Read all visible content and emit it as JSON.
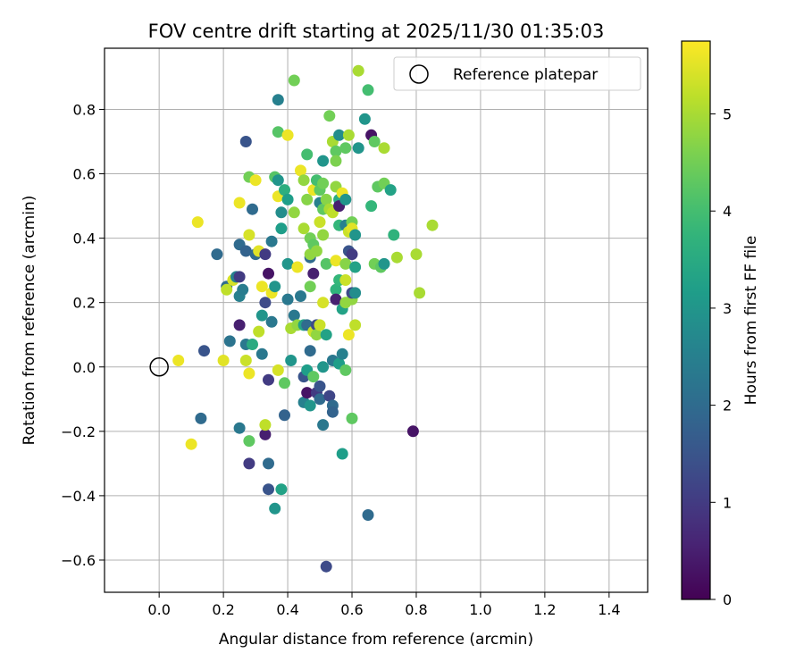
{
  "chart_data": {
    "type": "scatter",
    "title": "FOV centre drift starting at 2025/11/30 01:35:03",
    "xlabel": "Angular distance from reference (arcmin)",
    "ylabel": "Rotation from reference (arcmin)",
    "xlim": [
      -0.17,
      1.52
    ],
    "ylim": [
      -0.7,
      0.99
    ],
    "xticks": [
      0.0,
      0.2,
      0.4,
      0.6,
      0.8,
      1.0,
      1.2,
      1.4
    ],
    "xtick_labels": [
      "0.0",
      "0.2",
      "0.4",
      "0.6",
      "0.8",
      "1.0",
      "1.2",
      "1.4"
    ],
    "yticks": [
      -0.6,
      -0.4,
      -0.2,
      0.0,
      0.2,
      0.4,
      0.6,
      0.8
    ],
    "ytick_labels": [
      "−0.6",
      "−0.4",
      "−0.2",
      "0.0",
      "0.2",
      "0.4",
      "0.6",
      "0.8"
    ],
    "grid": true,
    "legend": {
      "position": "top-right",
      "label": "Reference platepar"
    },
    "reference_point": {
      "x": 0.0,
      "y": 0.0
    },
    "colorbar": {
      "label": "Hours from first FF file",
      "min": 0,
      "max": 5.75,
      "ticks": [
        0,
        1,
        2,
        3,
        4,
        5
      ],
      "tick_labels": [
        "0",
        "1",
        "2",
        "3",
        "4",
        "5"
      ],
      "colormap": "viridis"
    },
    "points": [
      [
        0.06,
        0.02,
        5.6
      ],
      [
        0.1,
        -0.24,
        5.6
      ],
      [
        0.12,
        0.45,
        5.6
      ],
      [
        0.14,
        0.05,
        1.5
      ],
      [
        0.13,
        -0.16,
        2.0
      ],
      [
        0.18,
        0.35,
        2.0
      ],
      [
        0.2,
        0.02,
        5.5
      ],
      [
        0.21,
        0.25,
        2.0
      ],
      [
        0.21,
        0.24,
        5.2
      ],
      [
        0.22,
        0.08,
        2.2
      ],
      [
        0.23,
        0.27,
        5.4
      ],
      [
        0.24,
        0.28,
        2.5
      ],
      [
        0.25,
        0.13,
        0.5
      ],
      [
        0.25,
        0.22,
        2.5
      ],
      [
        0.25,
        0.38,
        2.0
      ],
      [
        0.25,
        -0.19,
        2.3
      ],
      [
        0.25,
        0.51,
        5.6
      ],
      [
        0.25,
        0.28,
        1.0
      ],
      [
        0.26,
        0.24,
        2.4
      ],
      [
        0.27,
        0.02,
        5.3
      ],
      [
        0.27,
        0.07,
        2.3
      ],
      [
        0.27,
        0.7,
        1.5
      ],
      [
        0.27,
        0.36,
        1.8
      ],
      [
        0.28,
        -0.23,
        4.3
      ],
      [
        0.28,
        -0.3,
        1.0
      ],
      [
        0.28,
        0.59,
        4.5
      ],
      [
        0.28,
        0.41,
        5.4
      ],
      [
        0.28,
        -0.02,
        5.6
      ],
      [
        0.29,
        0.07,
        3.5
      ],
      [
        0.29,
        0.49,
        2.0
      ],
      [
        0.3,
        0.35,
        2.0
      ],
      [
        0.3,
        0.58,
        5.6
      ],
      [
        0.31,
        0.36,
        5.5
      ],
      [
        0.31,
        0.11,
        5.2
      ],
      [
        0.32,
        0.25,
        5.6
      ],
      [
        0.32,
        0.16,
        3.0
      ],
      [
        0.32,
        0.04,
        2.3
      ],
      [
        0.33,
        0.35,
        1.0
      ],
      [
        0.33,
        0.2,
        1.3
      ],
      [
        0.33,
        -0.21,
        0.5
      ],
      [
        0.33,
        -0.18,
        5.2
      ],
      [
        0.34,
        0.29,
        0.3
      ],
      [
        0.34,
        -0.04,
        1.0
      ],
      [
        0.34,
        -0.38,
        1.5
      ],
      [
        0.34,
        -0.3,
        2.0
      ],
      [
        0.35,
        0.23,
        5.6
      ],
      [
        0.35,
        0.14,
        2.3
      ],
      [
        0.35,
        0.39,
        2.3
      ],
      [
        0.36,
        0.59,
        4.2
      ],
      [
        0.36,
        0.25,
        3.0
      ],
      [
        0.36,
        -0.44,
        3.0
      ],
      [
        0.37,
        0.83,
        2.5
      ],
      [
        0.37,
        0.58,
        3.0
      ],
      [
        0.37,
        0.73,
        4.2
      ],
      [
        0.37,
        0.53,
        5.6
      ],
      [
        0.37,
        -0.01,
        5.4
      ],
      [
        0.38,
        0.43,
        3.2
      ],
      [
        0.38,
        0.48,
        2.8
      ],
      [
        0.38,
        -0.38,
        3.3
      ],
      [
        0.39,
        -0.15,
        1.8
      ],
      [
        0.39,
        0.55,
        3.6
      ],
      [
        0.39,
        -0.05,
        4.3
      ],
      [
        0.4,
        0.21,
        2.3
      ],
      [
        0.4,
        0.32,
        3.0
      ],
      [
        0.4,
        0.72,
        5.6
      ],
      [
        0.4,
        0.52,
        3.2
      ],
      [
        0.41,
        0.02,
        3.0
      ],
      [
        0.41,
        0.12,
        5.0
      ],
      [
        0.42,
        0.16,
        2.3
      ],
      [
        0.42,
        0.48,
        4.8
      ],
      [
        0.42,
        0.89,
        4.5
      ],
      [
        0.43,
        0.13,
        4.8
      ],
      [
        0.43,
        0.31,
        5.6
      ],
      [
        0.44,
        0.22,
        2.3
      ],
      [
        0.44,
        0.61,
        5.6
      ],
      [
        0.45,
        0.13,
        3.3
      ],
      [
        0.45,
        0.43,
        5.0
      ],
      [
        0.45,
        0.58,
        4.8
      ],
      [
        0.45,
        -0.11,
        2.5
      ],
      [
        0.45,
        -0.03,
        1.5
      ],
      [
        0.46,
        0.13,
        2.0
      ],
      [
        0.46,
        0.66,
        4.0
      ],
      [
        0.46,
        0.52,
        4.7
      ],
      [
        0.46,
        -0.08,
        0.3
      ],
      [
        0.46,
        -0.01,
        3.2
      ],
      [
        0.47,
        0.4,
        4.5
      ],
      [
        0.47,
        -0.12,
        3.0
      ],
      [
        0.47,
        0.34,
        2.0
      ],
      [
        0.47,
        0.35,
        4.8
      ],
      [
        0.47,
        0.05,
        2.0
      ],
      [
        0.47,
        0.25,
        4.5
      ],
      [
        0.48,
        0.29,
        0.5
      ],
      [
        0.48,
        0.38,
        4.3
      ],
      [
        0.48,
        -0.03,
        4.3
      ],
      [
        0.48,
        0.55,
        5.6
      ],
      [
        0.48,
        0.11,
        5.3
      ],
      [
        0.49,
        0.13,
        1.3
      ],
      [
        0.49,
        0.1,
        4.8
      ],
      [
        0.49,
        0.58,
        4.0
      ],
      [
        0.49,
        -0.08,
        1.0
      ],
      [
        0.49,
        0.36,
        4.8
      ],
      [
        0.5,
        -0.1,
        2.0
      ],
      [
        0.5,
        0.45,
        5.3
      ],
      [
        0.5,
        0.55,
        4.3
      ],
      [
        0.5,
        -0.06,
        1.5
      ],
      [
        0.5,
        0.13,
        5.3
      ],
      [
        0.5,
        0.51,
        2.5
      ],
      [
        0.51,
        0.64,
        3.0
      ],
      [
        0.51,
        0.57,
        4.5
      ],
      [
        0.51,
        0.2,
        5.4
      ],
      [
        0.51,
        0.0,
        3.0
      ],
      [
        0.51,
        0.41,
        4.8
      ],
      [
        0.51,
        0.49,
        4.3
      ],
      [
        0.51,
        -0.18,
        2.3
      ],
      [
        0.52,
        0.32,
        4.2
      ],
      [
        0.52,
        0.52,
        4.7
      ],
      [
        0.52,
        -0.62,
        1.3
      ],
      [
        0.52,
        0.1,
        3.3
      ],
      [
        0.53,
        -0.09,
        1.2
      ],
      [
        0.53,
        0.78,
        4.5
      ],
      [
        0.53,
        0.49,
        5.0
      ],
      [
        0.54,
        0.7,
        5.0
      ],
      [
        0.54,
        -0.12,
        2.0
      ],
      [
        0.54,
        0.48,
        5.2
      ],
      [
        0.54,
        -0.14,
        1.8
      ],
      [
        0.54,
        0.02,
        2.3
      ],
      [
        0.55,
        0.56,
        4.8
      ],
      [
        0.55,
        0.33,
        5.6
      ],
      [
        0.55,
        0.67,
        4.3
      ],
      [
        0.55,
        0.24,
        3.7
      ],
      [
        0.55,
        0.21,
        0.5
      ],
      [
        0.55,
        0.64,
        4.6
      ],
      [
        0.56,
        0.52,
        3.5
      ],
      [
        0.56,
        0.72,
        2.8
      ],
      [
        0.56,
        0.44,
        3.8
      ],
      [
        0.56,
        0.5,
        0.5
      ],
      [
        0.56,
        0.27,
        3.8
      ],
      [
        0.56,
        0.01,
        3.2
      ],
      [
        0.57,
        -0.27,
        3.2
      ],
      [
        0.57,
        0.04,
        2.5
      ],
      [
        0.57,
        0.18,
        3.3
      ],
      [
        0.57,
        0.54,
        5.6
      ],
      [
        0.58,
        0.52,
        3.0
      ],
      [
        0.58,
        0.44,
        2.5
      ],
      [
        0.58,
        0.68,
        4.3
      ],
      [
        0.58,
        0.32,
        4.7
      ],
      [
        0.58,
        0.27,
        5.3
      ],
      [
        0.58,
        0.2,
        4.8
      ],
      [
        0.58,
        -0.01,
        4.3
      ],
      [
        0.59,
        0.42,
        5.3
      ],
      [
        0.59,
        0.72,
        5.0
      ],
      [
        0.59,
        0.36,
        1.5
      ],
      [
        0.59,
        0.1,
        5.6
      ],
      [
        0.6,
        0.35,
        1.0
      ],
      [
        0.6,
        0.21,
        4.8
      ],
      [
        0.6,
        0.23,
        1.3
      ],
      [
        0.6,
        0.45,
        4.5
      ],
      [
        0.6,
        0.43,
        5.5
      ],
      [
        0.6,
        -0.16,
        4.3
      ],
      [
        0.61,
        0.41,
        3.0
      ],
      [
        0.61,
        0.13,
        5.2
      ],
      [
        0.61,
        0.31,
        3.3
      ],
      [
        0.61,
        0.23,
        2.8
      ],
      [
        0.62,
        0.68,
        3.0
      ],
      [
        0.62,
        0.92,
        5.0
      ],
      [
        0.64,
        0.77,
        3.0
      ],
      [
        0.65,
        0.86,
        4.0
      ],
      [
        0.65,
        -0.46,
        2.0
      ],
      [
        0.66,
        0.5,
        3.8
      ],
      [
        0.66,
        0.72,
        0.3
      ],
      [
        0.67,
        0.7,
        4.3
      ],
      [
        0.67,
        0.32,
        4.5
      ],
      [
        0.68,
        0.56,
        4.3
      ],
      [
        0.69,
        0.31,
        4.3
      ],
      [
        0.7,
        0.32,
        3.0
      ],
      [
        0.7,
        0.68,
        5.0
      ],
      [
        0.7,
        0.57,
        4.5
      ],
      [
        0.72,
        0.55,
        3.3
      ],
      [
        0.73,
        0.41,
        3.7
      ],
      [
        0.74,
        0.34,
        5.0
      ],
      [
        0.79,
        -0.2,
        0.3
      ],
      [
        0.8,
        0.35,
        5.0
      ],
      [
        0.81,
        0.23,
        5.0
      ],
      [
        0.85,
        0.44,
        5.0
      ]
    ]
  }
}
